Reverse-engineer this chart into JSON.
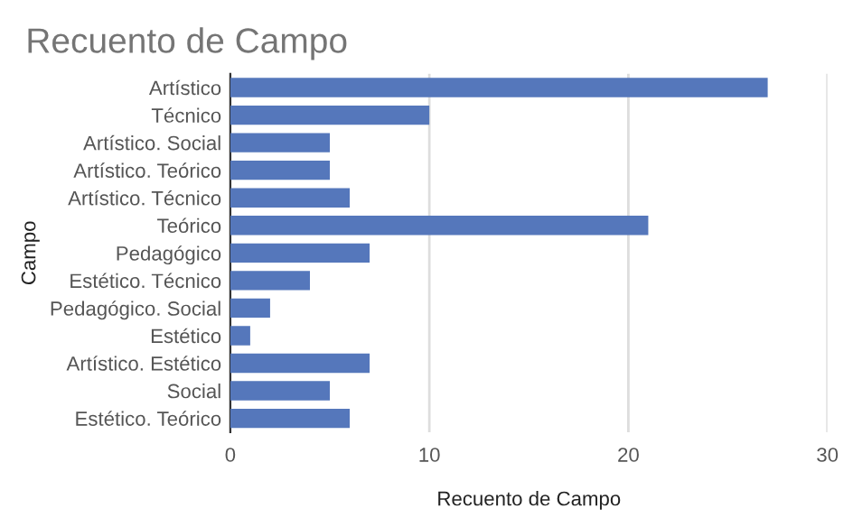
{
  "chart_data": {
    "type": "bar",
    "orientation": "horizontal",
    "title": "Recuento de Campo",
    "xlabel": "Recuento de Campo",
    "ylabel": "Campo",
    "categories": [
      "Artístico",
      "Técnico",
      "Artístico. Social",
      "Artístico. Teórico",
      "Artístico. Técnico",
      "Teórico",
      "Pedagógico",
      "Estético. Técnico",
      "Pedagógico. Social",
      "Estético",
      "Artístico. Estético",
      "Social",
      "Estético. Teórico"
    ],
    "values": [
      27,
      10,
      5,
      5,
      6,
      21,
      7,
      4,
      2,
      1,
      7,
      5,
      6
    ],
    "color": "#5577bb",
    "xlim": [
      0,
      30
    ],
    "xticks": [
      0,
      10,
      20,
      30
    ],
    "grid": "x",
    "legend": false
  }
}
